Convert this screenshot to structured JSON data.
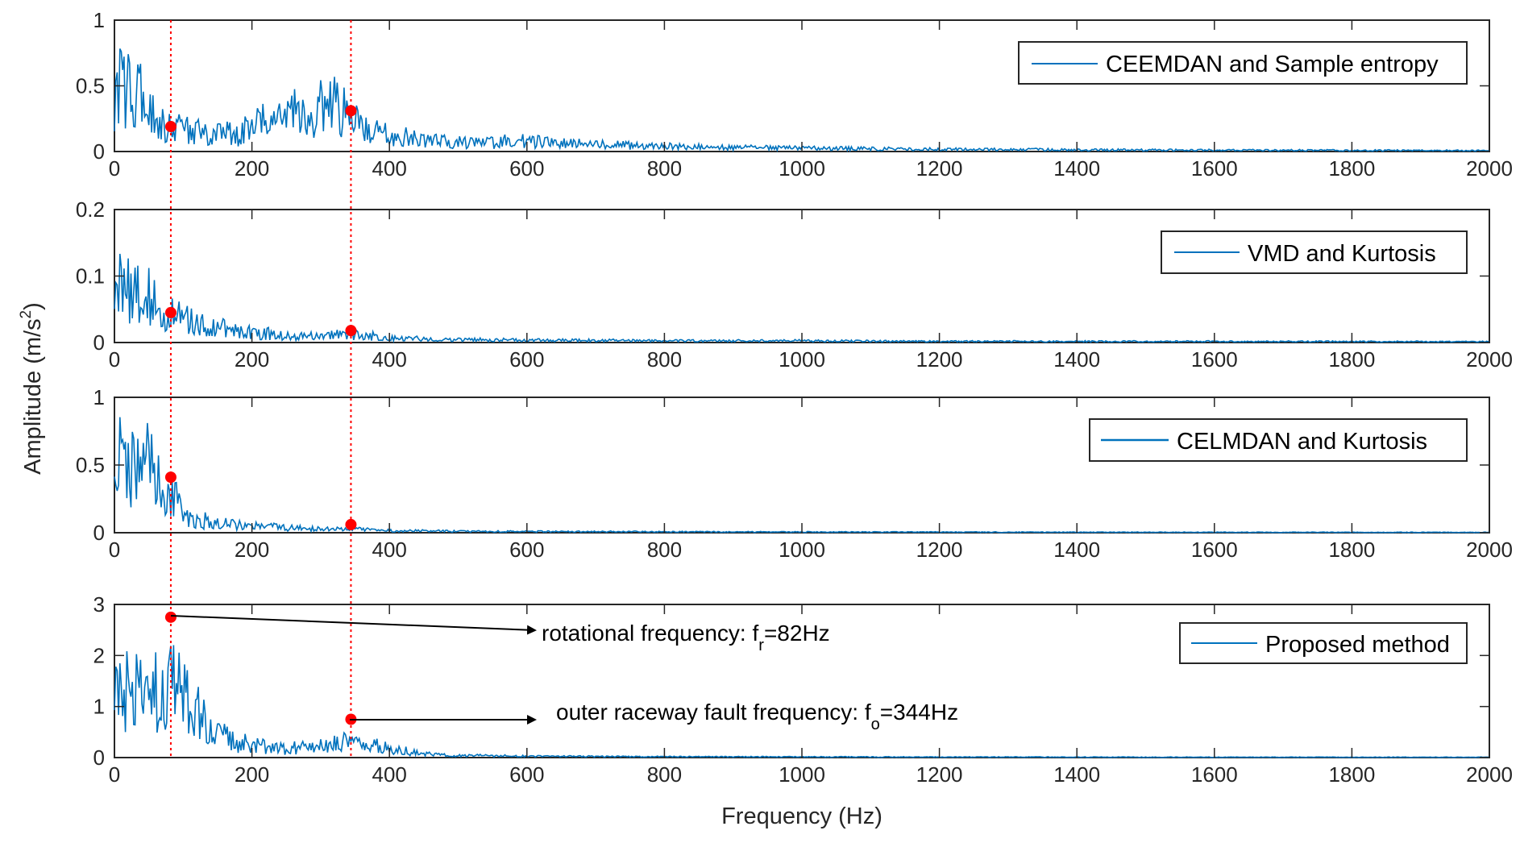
{
  "chart_data": {
    "type": "line",
    "xlabel": "Frequency (Hz)",
    "ylabel": "Amplitude (m/s",
    "ylabel_sup": "2",
    "ylabel_close": ")",
    "xlim": [
      0,
      2000
    ],
    "xticks": [
      0,
      200,
      400,
      600,
      800,
      1000,
      1200,
      1400,
      1600,
      1800,
      2000
    ],
    "reference_lines_hz": [
      82,
      344
    ],
    "colors": {
      "series": "#0072BD",
      "marker": "#FF0000",
      "refline": "#FF0000",
      "axis": "#262626"
    },
    "panels": [
      {
        "legend": "CEEMDAN and Sample entropy",
        "ylim": [
          0,
          1
        ],
        "yticks": [
          "0",
          "0.5",
          "1"
        ],
        "markers": [
          {
            "x": 82,
            "y": 0.19
          },
          {
            "x": 344,
            "y": 0.31
          }
        ],
        "envelope": [
          [
            0,
            0.32
          ],
          [
            10,
            0.6
          ],
          [
            30,
            0.52
          ],
          [
            60,
            0.28
          ],
          [
            82,
            0.2
          ],
          [
            120,
            0.17
          ],
          [
            180,
            0.15
          ],
          [
            230,
            0.3
          ],
          [
            250,
            0.38
          ],
          [
            280,
            0.25
          ],
          [
            310,
            0.43
          ],
          [
            340,
            0.3
          ],
          [
            380,
            0.16
          ],
          [
            450,
            0.1
          ],
          [
            520,
            0.08
          ],
          [
            600,
            0.09
          ],
          [
            650,
            0.07
          ],
          [
            720,
            0.06
          ],
          [
            800,
            0.045
          ],
          [
            900,
            0.035
          ],
          [
            1000,
            0.028
          ],
          [
            1200,
            0.02
          ],
          [
            1400,
            0.015
          ],
          [
            1600,
            0.012
          ],
          [
            1800,
            0.01
          ],
          [
            2000,
            0.008
          ]
        ]
      },
      {
        "legend": "VMD and Kurtosis",
        "ylim": [
          0,
          0.2
        ],
        "yticks": [
          "0",
          "0.1",
          "0.2"
        ],
        "markers": [
          {
            "x": 82,
            "y": 0.045
          },
          {
            "x": 344,
            "y": 0.018
          }
        ],
        "envelope": [
          [
            0,
            0.09
          ],
          [
            20,
            0.1
          ],
          [
            50,
            0.075
          ],
          [
            82,
            0.045
          ],
          [
            100,
            0.04
          ],
          [
            150,
            0.025
          ],
          [
            200,
            0.018
          ],
          [
            250,
            0.012
          ],
          [
            300,
            0.012
          ],
          [
            344,
            0.015
          ],
          [
            400,
            0.008
          ],
          [
            500,
            0.005
          ],
          [
            600,
            0.004
          ],
          [
            800,
            0.003
          ],
          [
            1000,
            0.003
          ],
          [
            1200,
            0.002
          ],
          [
            1500,
            0.002
          ],
          [
            2000,
            0.0015
          ]
        ]
      },
      {
        "legend": "CELMDAN and Kurtosis",
        "ylim": [
          0,
          1
        ],
        "yticks": [
          "0",
          "0.5",
          "1"
        ],
        "markers": [
          {
            "x": 82,
            "y": 0.41
          },
          {
            "x": 344,
            "y": 0.06
          }
        ],
        "envelope": [
          [
            0,
            0.65
          ],
          [
            20,
            0.55
          ],
          [
            50,
            0.55
          ],
          [
            70,
            0.4
          ],
          [
            82,
            0.35
          ],
          [
            100,
            0.12
          ],
          [
            150,
            0.09
          ],
          [
            200,
            0.06
          ],
          [
            250,
            0.04
          ],
          [
            300,
            0.03
          ],
          [
            344,
            0.03
          ],
          [
            400,
            0.018
          ],
          [
            500,
            0.012
          ],
          [
            600,
            0.01
          ],
          [
            800,
            0.008
          ],
          [
            1000,
            0.006
          ],
          [
            1500,
            0.004
          ],
          [
            2000,
            0.003
          ]
        ]
      },
      {
        "legend": "Proposed method",
        "ylim": [
          0,
          3
        ],
        "yticks": [
          "0",
          "1",
          "2",
          "3"
        ],
        "markers": [
          {
            "x": 82,
            "y": 2.75
          },
          {
            "x": 344,
            "y": 0.75
          }
        ],
        "envelope": [
          [
            0,
            1.3
          ],
          [
            20,
            1.4
          ],
          [
            50,
            1.3
          ],
          [
            82,
            1.6
          ],
          [
            100,
            1.3
          ],
          [
            130,
            0.9
          ],
          [
            150,
            0.6
          ],
          [
            170,
            0.35
          ],
          [
            200,
            0.3
          ],
          [
            250,
            0.22
          ],
          [
            300,
            0.25
          ],
          [
            344,
            0.35
          ],
          [
            400,
            0.2
          ],
          [
            450,
            0.08
          ],
          [
            500,
            0.05
          ],
          [
            600,
            0.03
          ],
          [
            800,
            0.02
          ],
          [
            1000,
            0.015
          ],
          [
            1500,
            0.01
          ],
          [
            2000,
            0.008
          ]
        ]
      }
    ],
    "annotations": [
      {
        "text": "rotational frequency: f",
        "sub": "r",
        "tail": "=82Hz"
      },
      {
        "text": "outer raceway fault frequency: f",
        "sub": "o",
        "tail": "=344Hz"
      }
    ]
  }
}
